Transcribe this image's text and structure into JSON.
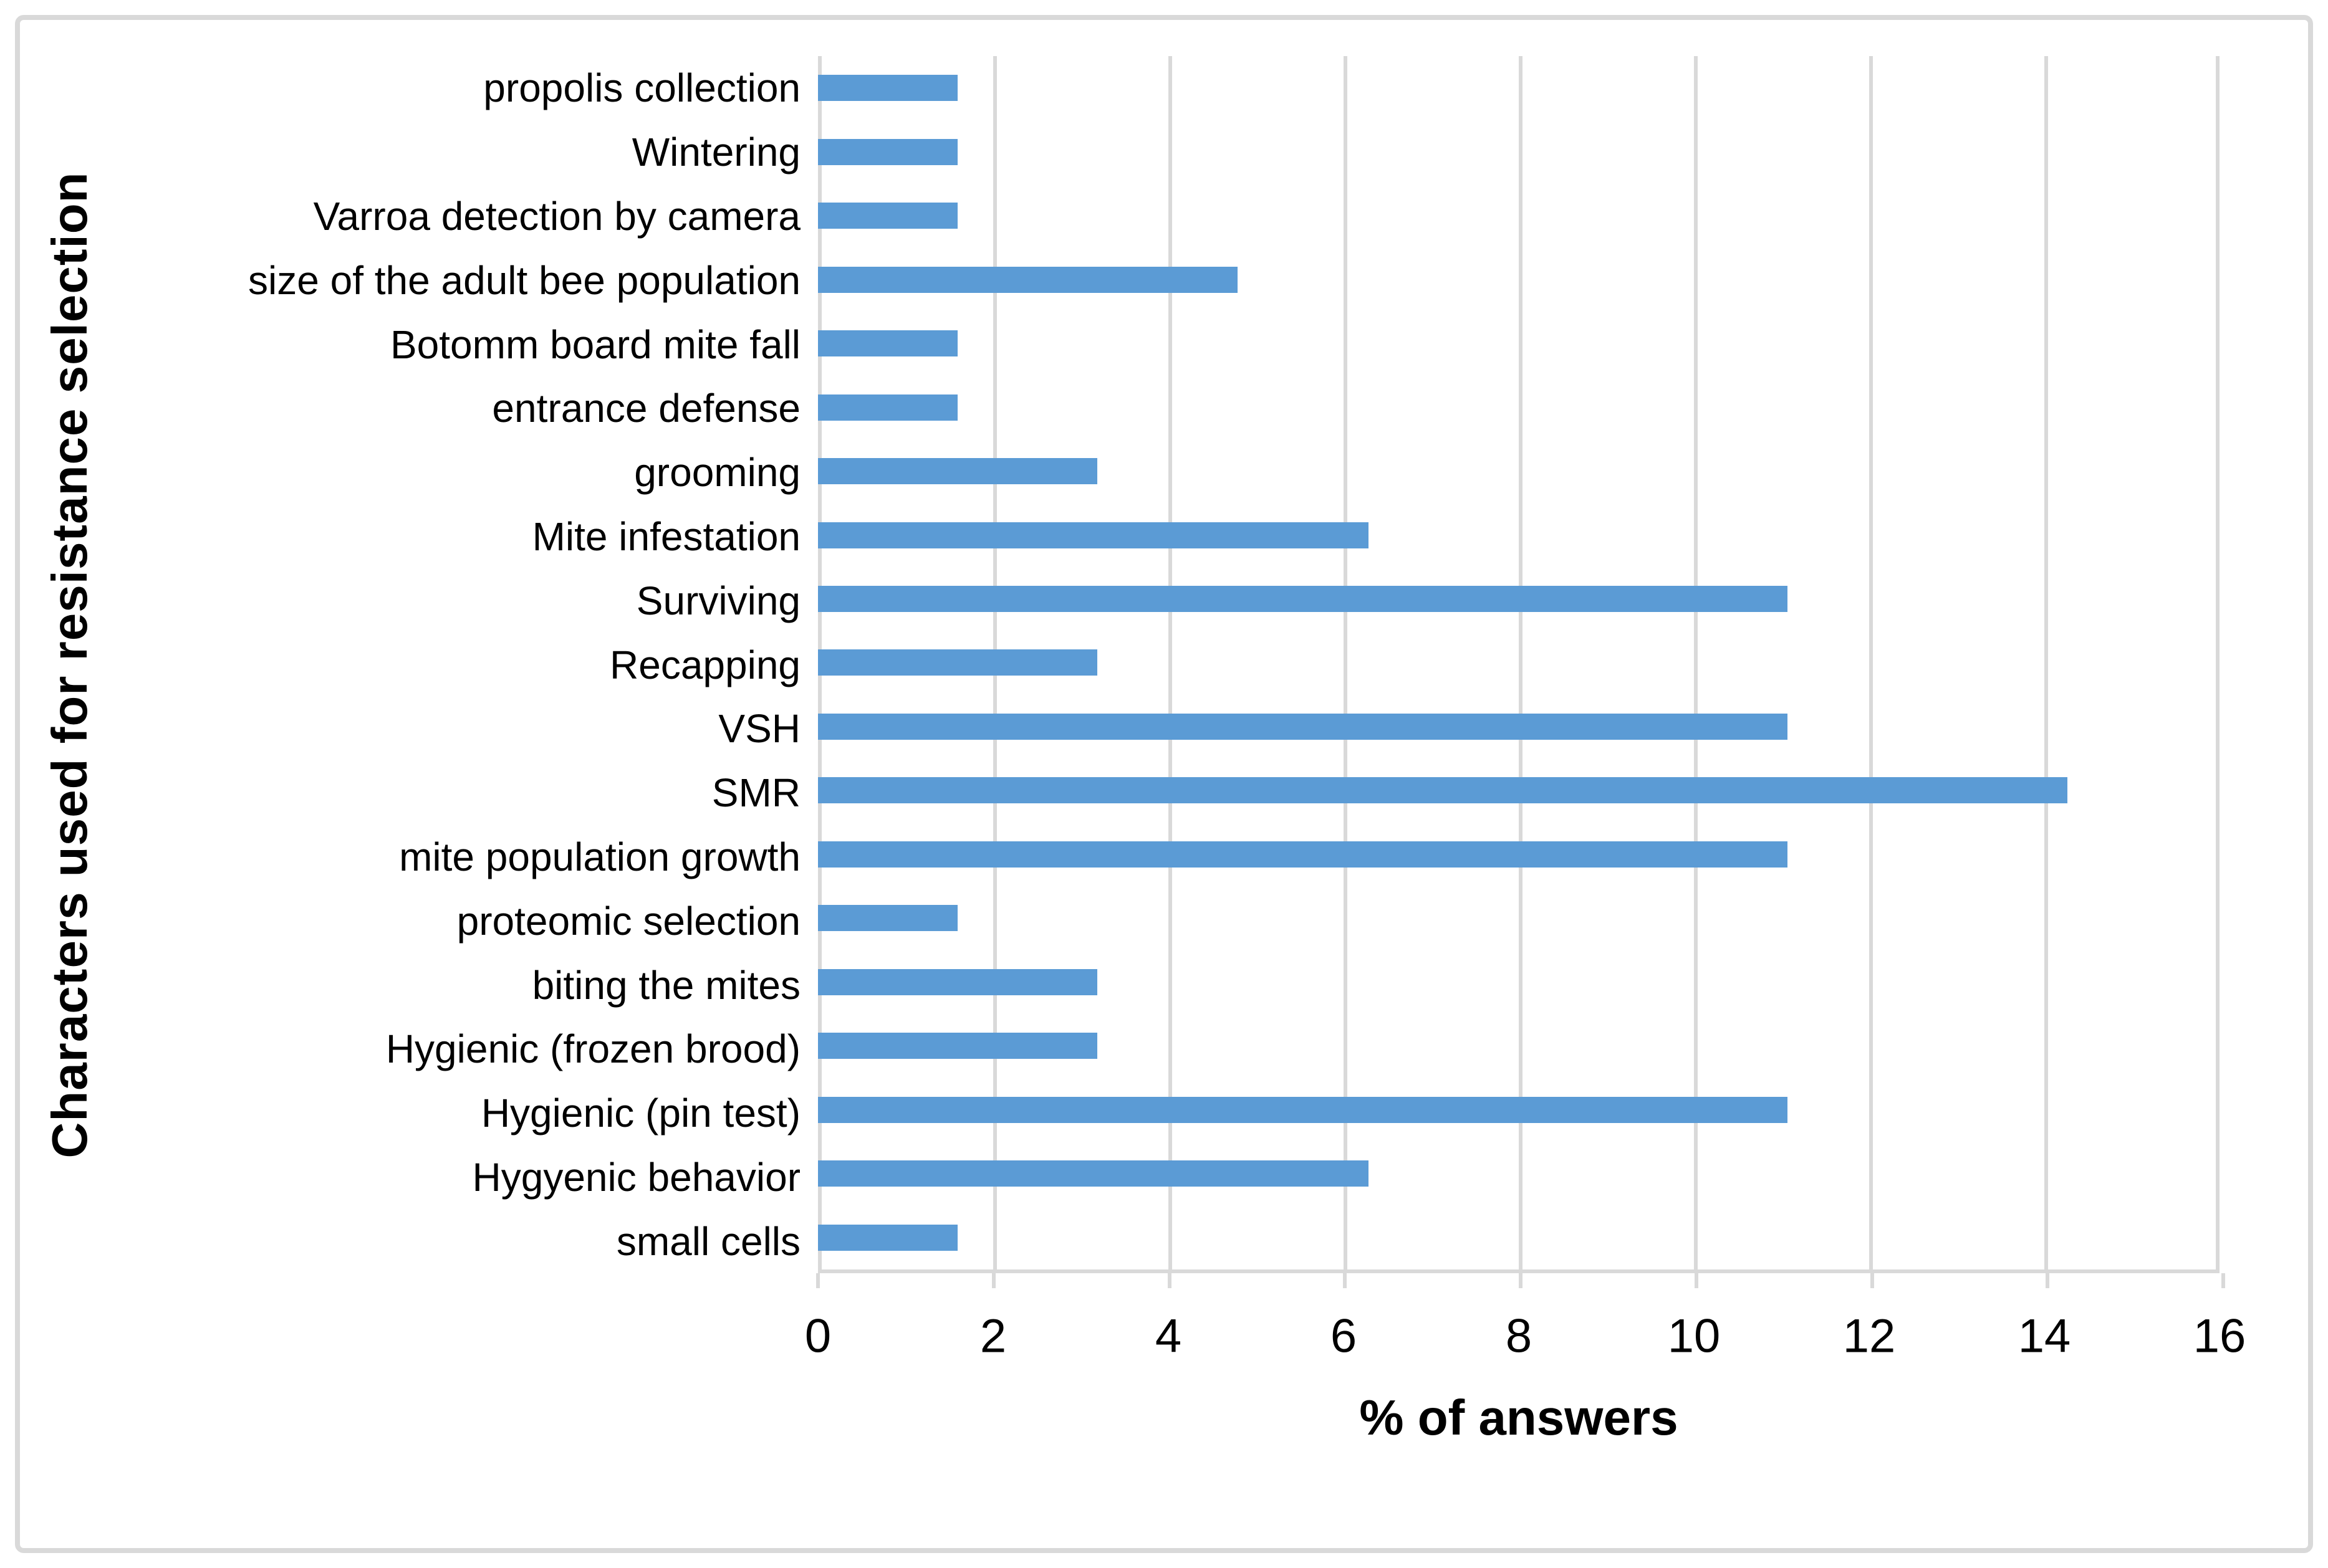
{
  "chart_data": {
    "type": "bar",
    "orientation": "horizontal",
    "title": "",
    "xlabel": "% of answers",
    "ylabel": "Characters used for resistance selection",
    "categories": [
      "propolis collection",
      "Wintering",
      "Varroa detection by camera",
      "size of the adult bee population",
      "Botomm board mite fall",
      "entrance defense",
      "grooming",
      "Mite infestation",
      "Surviving",
      "Recapping",
      "VSH",
      "SMR",
      "mite population growth",
      "proteomic selection",
      "biting the mites",
      "Hygienic (frozen brood)",
      "Hygienic (pin test)",
      "Hygyenic behavior",
      "small cells"
    ],
    "values": [
      1.6,
      1.6,
      1.6,
      4.8,
      1.6,
      1.6,
      3.2,
      6.3,
      11.1,
      3.2,
      11.1,
      14.3,
      11.1,
      1.6,
      3.2,
      3.2,
      11.1,
      6.3,
      1.6
    ],
    "xlim": [
      0,
      16
    ],
    "xticks": [
      0,
      2,
      4,
      6,
      8,
      10,
      12,
      14,
      16
    ],
    "tick_labels": [
      "0",
      "2",
      "4",
      "6",
      "8",
      "10",
      "12",
      "14",
      "16"
    ],
    "grid": "vertical-gridlines-on",
    "legend": "none",
    "bar_color": "#5B9BD5",
    "gridline_color": "#D9D9D9"
  }
}
